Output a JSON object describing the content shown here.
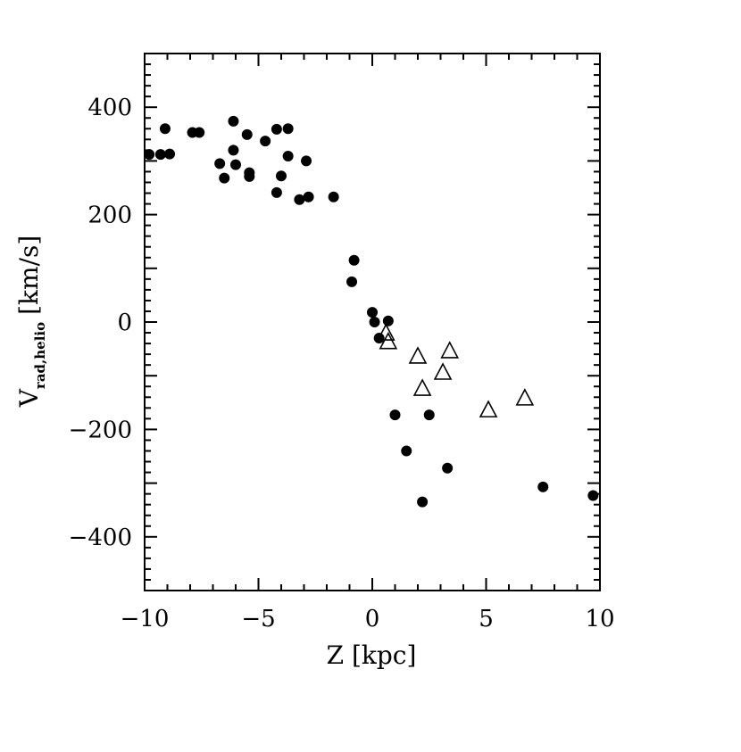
{
  "chart_data": {
    "type": "scatter",
    "xlabel": "Z [kpc]",
    "ylabel": {
      "main": "V",
      "subscript": "rad,helio",
      "unit": "[km/s]"
    },
    "xlim": [
      -10,
      10
    ],
    "ylim": [
      -500,
      500
    ],
    "x_ticks": [
      -10,
      -5,
      0,
      5,
      10
    ],
    "y_ticks": [
      -400,
      -200,
      0,
      200,
      400
    ],
    "grid": false,
    "series": [
      {
        "marker": "filled-circle",
        "color": "#000000",
        "points": [
          {
            "x": -9.8,
            "y": 312
          },
          {
            "x": -9.3,
            "y": 312
          },
          {
            "x": -9.1,
            "y": 360
          },
          {
            "x": -8.9,
            "y": 313
          },
          {
            "x": -7.9,
            "y": 353
          },
          {
            "x": -7.6,
            "y": 353
          },
          {
            "x": -6.7,
            "y": 295
          },
          {
            "x": -6.5,
            "y": 268
          },
          {
            "x": -6.1,
            "y": 374
          },
          {
            "x": -6.1,
            "y": 320
          },
          {
            "x": -6.0,
            "y": 293
          },
          {
            "x": -5.5,
            "y": 349
          },
          {
            "x": -5.4,
            "y": 278
          },
          {
            "x": -5.4,
            "y": 271
          },
          {
            "x": -4.7,
            "y": 337
          },
          {
            "x": -4.2,
            "y": 359
          },
          {
            "x": -4.2,
            "y": 241
          },
          {
            "x": -4.0,
            "y": 272
          },
          {
            "x": -3.7,
            "y": 360
          },
          {
            "x": -3.7,
            "y": 309
          },
          {
            "x": -3.2,
            "y": 228
          },
          {
            "x": -2.9,
            "y": 300
          },
          {
            "x": -2.8,
            "y": 233
          },
          {
            "x": -1.7,
            "y": 233
          },
          {
            "x": -0.8,
            "y": 115
          },
          {
            "x": -0.9,
            "y": 75
          },
          {
            "x": 0.0,
            "y": 18
          },
          {
            "x": 0.1,
            "y": 0
          },
          {
            "x": 0.3,
            "y": -30
          },
          {
            "x": 0.7,
            "y": 2
          },
          {
            "x": 1.0,
            "y": -173
          },
          {
            "x": 1.5,
            "y": -240
          },
          {
            "x": 2.2,
            "y": -335
          },
          {
            "x": 2.5,
            "y": -173
          },
          {
            "x": 3.3,
            "y": -272
          },
          {
            "x": 7.5,
            "y": -307
          },
          {
            "x": 9.7,
            "y": -323
          }
        ]
      },
      {
        "marker": "open-triangle",
        "color": "#000000",
        "points": [
          {
            "x": 0.6,
            "y": -22
          },
          {
            "x": 0.7,
            "y": -38
          },
          {
            "x": 2.0,
            "y": -65
          },
          {
            "x": 2.2,
            "y": -125
          },
          {
            "x": 3.1,
            "y": -95
          },
          {
            "x": 3.4,
            "y": -55
          },
          {
            "x": 5.1,
            "y": -165
          },
          {
            "x": 6.7,
            "y": -143
          }
        ]
      }
    ]
  }
}
